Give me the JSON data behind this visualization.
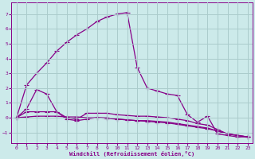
{
  "xlabel": "Windchill (Refroidissement éolien,°C)",
  "bg_color": "#cceaea",
  "line_color": "#880088",
  "grid_color": "#aacccc",
  "xlim": [
    -0.5,
    23.5
  ],
  "ylim": [
    -1.7,
    7.8
  ],
  "yticks": [
    -1,
    0,
    1,
    2,
    3,
    4,
    5,
    6,
    7
  ],
  "xticks": [
    0,
    1,
    2,
    3,
    4,
    5,
    6,
    7,
    8,
    9,
    10,
    11,
    12,
    13,
    14,
    15,
    16,
    17,
    18,
    19,
    20,
    21,
    22,
    23
  ],
  "line1_x": [
    0,
    1,
    2,
    3,
    4,
    5,
    6,
    7,
    8,
    9,
    10,
    11,
    12,
    13,
    14,
    15,
    16,
    17,
    18,
    19,
    20,
    21,
    22,
    23
  ],
  "line1_y": [
    0.0,
    2.2,
    3.0,
    3.7,
    4.5,
    5.1,
    5.6,
    6.0,
    6.5,
    6.8,
    7.0,
    7.1,
    3.4,
    2.0,
    1.8,
    1.6,
    1.5,
    0.2,
    -0.3,
    0.1,
    -1.1,
    -1.2,
    -1.3,
    -1.3
  ],
  "line2_x": [
    0,
    1,
    2,
    3,
    4,
    5,
    6,
    7,
    8,
    9,
    10,
    11,
    12,
    13,
    14,
    15,
    16,
    17,
    18,
    19,
    20,
    21,
    22,
    23
  ],
  "line2_y": [
    0.0,
    0.6,
    1.9,
    1.6,
    0.4,
    0.0,
    -0.1,
    0.3,
    0.3,
    0.3,
    0.2,
    0.15,
    0.1,
    0.1,
    0.05,
    0.0,
    -0.1,
    -0.2,
    -0.4,
    -0.5,
    -0.8,
    -1.1,
    -1.2,
    -1.3
  ],
  "line3_x": [
    0,
    1,
    2,
    3,
    4,
    5,
    6,
    7,
    8,
    9,
    10,
    11,
    12,
    13,
    14,
    15,
    16,
    17,
    18,
    19,
    20,
    21,
    22,
    23
  ],
  "line3_y": [
    0.0,
    0.4,
    0.4,
    0.4,
    0.4,
    -0.1,
    -0.2,
    -0.1,
    0.0,
    0.0,
    -0.1,
    -0.15,
    -0.2,
    -0.2,
    -0.25,
    -0.3,
    -0.4,
    -0.5,
    -0.6,
    -0.7,
    -0.9,
    -1.1,
    -1.2,
    -1.3
  ],
  "line4_x": [
    0,
    1,
    2,
    3,
    4,
    5,
    6,
    7,
    8,
    9,
    10,
    11,
    12,
    13,
    14,
    15,
    16,
    17,
    18,
    19,
    20,
    21,
    22,
    23
  ],
  "line4_y": [
    0.0,
    0.05,
    0.1,
    0.1,
    0.1,
    0.05,
    0.05,
    0.0,
    0.0,
    -0.05,
    -0.1,
    -0.15,
    -0.2,
    -0.25,
    -0.3,
    -0.35,
    -0.45,
    -0.55,
    -0.65,
    -0.75,
    -0.9,
    -1.1,
    -1.2,
    -1.3
  ],
  "markersize": 2.0,
  "linewidth": 0.9
}
